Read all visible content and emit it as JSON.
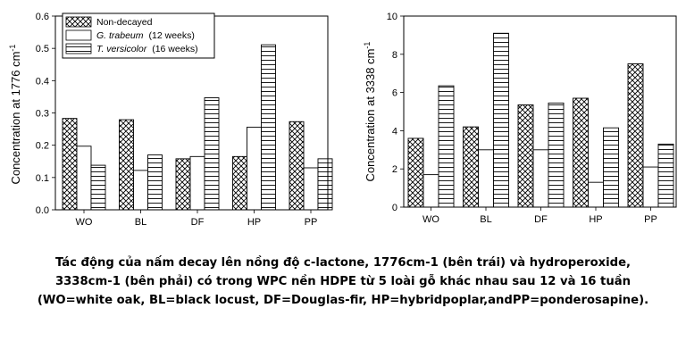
{
  "colors": {
    "ink": "#000000",
    "background": "#ffffff",
    "caption": "#000000"
  },
  "chart_data": [
    {
      "type": "bar",
      "ylabel": "Concentration at 1776 cm",
      "ylabel_sup": "-1",
      "categories": [
        "WO",
        "BL",
        "DF",
        "HP",
        "PP"
      ],
      "ylim": [
        0,
        0.6
      ],
      "yticks": [
        "0.0",
        "0.1",
        "0.2",
        "0.3",
        "0.4",
        "0.5",
        "0.6"
      ],
      "legend": "top-left",
      "series": [
        {
          "name": "Non-decayed",
          "pattern": "crosshatch",
          "values": [
            0.283,
            0.279,
            0.158,
            0.165,
            0.273
          ]
        },
        {
          "name": "G. trabeum",
          "name_suffix": "(12 weeks)",
          "pattern": "empty",
          "values": [
            0.197,
            0.122,
            0.165,
            0.256,
            0.13
          ]
        },
        {
          "name": "T. versicolor",
          "name_suffix": "(16 weeks)",
          "pattern": "hstripes",
          "values": [
            0.138,
            0.17,
            0.347,
            0.511,
            0.158
          ]
        }
      ]
    },
    {
      "type": "bar",
      "ylabel": "Concentration at 3338 cm",
      "ylabel_sup": "-1",
      "categories": [
        "WO",
        "BL",
        "DF",
        "HP",
        "PP"
      ],
      "ylim": [
        0,
        10
      ],
      "yticks": [
        "0",
        "2",
        "4",
        "6",
        "8",
        "10"
      ],
      "series": [
        {
          "name": "Non-decayed",
          "pattern": "crosshatch",
          "values": [
            3.6,
            4.2,
            5.35,
            5.7,
            7.5
          ]
        },
        {
          "name": "G. trabeum",
          "pattern": "empty",
          "values": [
            1.7,
            3.0,
            3.0,
            1.3,
            2.1
          ]
        },
        {
          "name": "T. versicolor",
          "pattern": "hstripes",
          "values": [
            6.35,
            9.1,
            5.45,
            4.15,
            3.3
          ]
        }
      ]
    }
  ],
  "caption": "Tác động của nấm decay lên nồng độ c-lactone, 1776cm-1 (bên trái) và hydroperoxide, 3338cm-1 (bên phải) có trong WPC nền HDPE từ 5 loài gỗ khác nhau sau 12 và 16 tuần (WO=white oak, BL=black locust, DF=Douglas-fir, HP=hybridpoplar,andPP=ponderosapine)."
}
